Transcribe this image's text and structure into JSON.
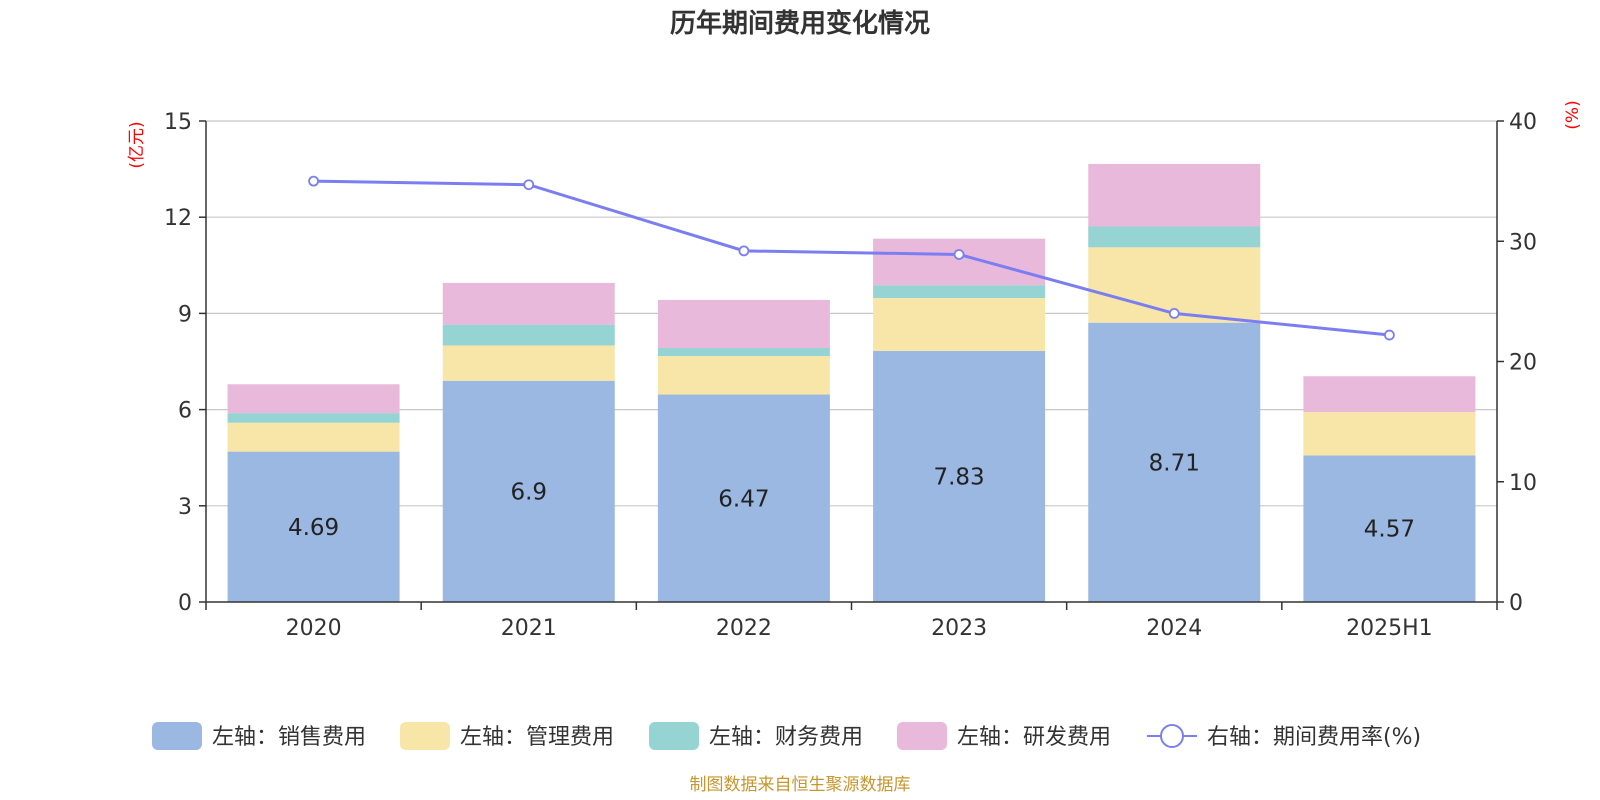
{
  "chart_data": {
    "type": "bar",
    "stacked": true,
    "title": "历年期间费用变化情况",
    "categories": [
      "2020",
      "2021",
      "2022",
      "2023",
      "2024",
      "2025H1"
    ],
    "left_axis": {
      "unit": "(亿元)",
      "ylim": [
        0,
        15
      ],
      "ticks": [
        "0",
        "3",
        "6",
        "9",
        "12",
        "15"
      ]
    },
    "right_axis": {
      "unit": "(%)",
      "ylim": [
        0,
        40
      ],
      "ticks": [
        "0",
        "10",
        "20",
        "30",
        "40"
      ]
    },
    "series": [
      {
        "name": "左轴：销售费用",
        "color": "#9bb8e2",
        "values": [
          4.69,
          6.9,
          6.47,
          7.83,
          8.71,
          4.57
        ],
        "labels": [
          "4.69",
          "6.9",
          "6.47",
          "7.83",
          "8.71",
          "4.57"
        ]
      },
      {
        "name": "左轴：管理费用",
        "color": "#f7e6a8",
        "values": [
          0.9,
          1.1,
          1.2,
          1.65,
          2.35,
          1.35
        ]
      },
      {
        "name": "左轴：财务费用",
        "color": "#96d4d4",
        "values": [
          0.3,
          0.65,
          0.25,
          0.4,
          0.65,
          0.0
        ]
      },
      {
        "name": "左轴：研发费用",
        "color": "#e8b9da",
        "values": [
          0.9,
          1.3,
          1.5,
          1.45,
          1.95,
          1.12
        ]
      }
    ],
    "line_series": {
      "name": "右轴：期间费用率(%)",
      "color": "#7b7ef0",
      "axis": "right",
      "values": [
        35.0,
        34.7,
        29.2,
        28.9,
        24.0,
        22.2
      ]
    },
    "legend_position": "bottom",
    "grid": true,
    "source": "制图数据来自恒生聚源数据库"
  }
}
